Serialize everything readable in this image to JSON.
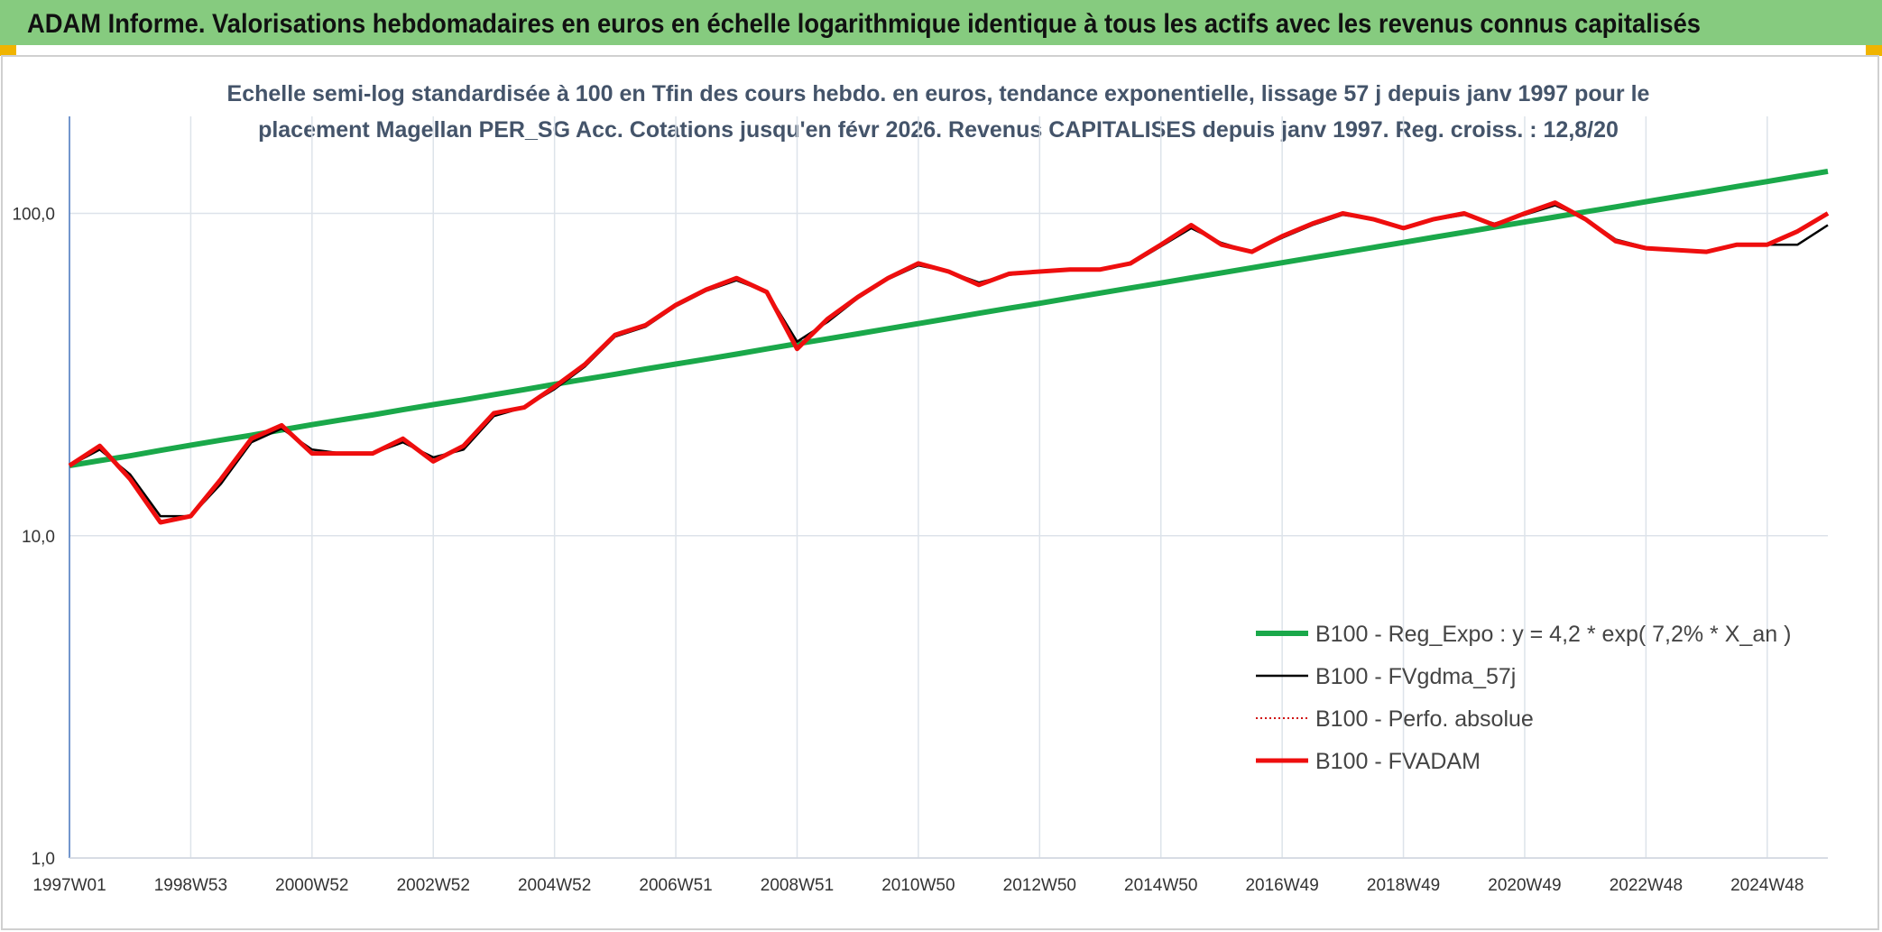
{
  "chart_data": {
    "type": "line",
    "header": "ADAM Informe. Valorisations hebdomadaires en euros en échelle logarithmique identique à tous les actifs avec les revenus connus capitalisés",
    "subtitle": [
      "Echelle semi-log standardisée à 100 en Tfin des cours hebdo. en euros, tendance exponentielle, lissage 57 j depuis janv 1997 pour le",
      "placement Magellan PER_SG Acc. Cotations jusqu'en févr 2026. Revenus CAPITALISES depuis janv 1997. Reg. croiss. : 12,8/20"
    ],
    "categories": [
      "1997W01",
      null,
      null,
      null,
      "1998W53",
      null,
      null,
      null,
      "2000W52",
      null,
      null,
      null,
      "2002W52",
      null,
      null,
      null,
      "2004W52",
      null,
      null,
      null,
      "2006W51",
      null,
      null,
      null,
      "2008W51",
      null,
      null,
      null,
      "2010W50",
      null,
      null,
      null,
      "2012W50",
      null,
      null,
      null,
      "2014W50",
      null,
      null,
      null,
      "2016W49",
      null,
      null,
      null,
      "2018W49",
      null,
      null,
      null,
      "2020W49",
      null,
      null,
      null,
      "2022W48",
      null,
      null,
      null,
      "2024W48",
      null,
      null
    ],
    "ylim": [
      1,
      200
    ],
    "log_y": true,
    "yticks": [
      {
        "value": 1,
        "label": "1,0"
      },
      {
        "value": 10,
        "label": "10,0"
      },
      {
        "value": 100,
        "label": "100,0"
      }
    ],
    "grid": true,
    "legend": "lower right",
    "series": [
      {
        "name": "B100 - Reg_Expo : y = 4,2 * exp( 7,2% *  X_an )",
        "color": "#1aa84a",
        "style": "solid",
        "width": 6,
        "values": [
          16.5,
          17.1,
          17.7,
          18.4,
          19.1,
          19.8,
          20.5,
          21.3,
          22.1,
          22.9,
          23.7,
          24.6,
          25.5,
          26.4,
          27.4,
          28.4,
          29.5,
          30.6,
          31.7,
          32.9,
          34.1,
          35.3,
          36.6,
          38.0,
          39.4,
          40.8,
          42.3,
          43.9,
          45.5,
          47.2,
          49.0,
          50.8,
          52.6,
          54.6,
          56.6,
          58.7,
          60.8,
          63.1,
          65.4,
          67.8,
          70.3,
          72.9,
          75.6,
          78.4,
          81.3,
          84.3,
          87.4,
          90.7,
          94.0,
          97.5,
          101.1,
          104.8,
          108.7,
          112.7,
          116.8,
          121.2,
          125.6,
          130.3,
          135.1
        ]
      },
      {
        "name": "B100 - FVgdma_57j",
        "color": "#000000",
        "style": "solid",
        "width": 2.5,
        "values": [
          16.5,
          18.5,
          15.5,
          11.5,
          11.5,
          14.5,
          19.5,
          21.5,
          18.5,
          18,
          18,
          19.5,
          17.5,
          18.5,
          23.5,
          25,
          28.5,
          33.5,
          41.5,
          44.5,
          51.5,
          57.5,
          62,
          57,
          40,
          46,
          54.5,
          62.5,
          69,
          66,
          61,
          64.5,
          66,
          67,
          67,
          69.5,
          79,
          90,
          81,
          76,
          84,
          92,
          99,
          96,
          90.5,
          95.5,
          99,
          93,
          99,
          106,
          96.5,
          83,
          78.5,
          77,
          76,
          79.5,
          80,
          80,
          92
        ]
      },
      {
        "name": "B100 - Perfo. absolue",
        "color": "#d01010",
        "style": "dotted",
        "width": 2,
        "values": [
          16.5,
          19,
          15,
          11,
          11.5,
          15,
          20,
          22,
          18,
          18,
          18,
          20,
          17,
          19,
          24,
          25,
          29,
          34,
          42,
          45,
          52,
          58,
          63,
          57,
          38,
          47,
          55,
          63,
          70,
          66,
          60,
          65,
          66,
          67,
          67,
          70,
          80,
          92,
          80,
          76,
          85,
          93,
          100,
          96,
          90,
          96,
          100,
          92,
          100,
          108,
          96,
          82,
          78,
          77,
          76,
          80,
          80,
          88,
          100
        ]
      },
      {
        "name": "B100 - FVADAM",
        "color": "#ee0e0e",
        "style": "solid",
        "width": 5,
        "values": [
          16.5,
          19,
          15,
          11,
          11.5,
          15,
          20,
          22,
          18,
          18,
          18,
          20,
          17,
          19,
          24,
          25,
          29,
          34,
          42,
          45,
          52,
          58,
          63,
          57,
          38,
          47,
          55,
          63,
          70,
          66,
          60,
          65,
          66,
          67,
          67,
          70,
          80,
          92,
          80,
          76,
          85,
          93,
          100,
          96,
          90,
          96,
          100,
          92,
          100,
          108,
          96,
          82,
          78,
          77,
          76,
          80,
          80,
          88,
          100
        ]
      }
    ]
  }
}
